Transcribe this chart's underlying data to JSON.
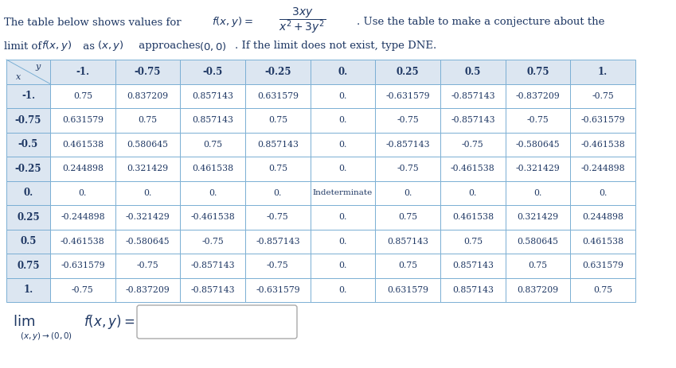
{
  "col_headers": [
    "-1.",
    "-0.75",
    "-0.5",
    "-0.25",
    "0.",
    "0.25",
    "0.5",
    "0.75",
    "1."
  ],
  "row_headers": [
    "-1.",
    "-0.75",
    "-0.5",
    "-0.25",
    "0.",
    "0.25",
    "0.5",
    "0.75",
    "1."
  ],
  "table_data": [
    [
      "0.75",
      "0.837209",
      "0.857143",
      "0.631579",
      "0.",
      "-0.631579",
      "-0.857143",
      "-0.837209",
      "-0.75"
    ],
    [
      "0.631579",
      "0.75",
      "0.857143",
      "0.75",
      "0.",
      "-0.75",
      "-0.857143",
      "-0.75",
      "-0.631579"
    ],
    [
      "0.461538",
      "0.580645",
      "0.75",
      "0.857143",
      "0.",
      "-0.857143",
      "-0.75",
      "-0.580645",
      "-0.461538"
    ],
    [
      "0.244898",
      "0.321429",
      "0.461538",
      "0.75",
      "0.",
      "-0.75",
      "-0.461538",
      "-0.321429",
      "-0.244898"
    ],
    [
      "0.",
      "0.",
      "0.",
      "0.",
      "Indeterminate",
      "0.",
      "0.",
      "0.",
      "0."
    ],
    [
      "-0.244898",
      "-0.321429",
      "-0.461538",
      "-0.75",
      "0.",
      "0.75",
      "0.461538",
      "0.321429",
      "0.244898"
    ],
    [
      "-0.461538",
      "-0.580645",
      "-0.75",
      "-0.857143",
      "0.",
      "0.857143",
      "0.75",
      "0.580645",
      "0.461538"
    ],
    [
      "-0.631579",
      "-0.75",
      "-0.857143",
      "-0.75",
      "0.",
      "0.75",
      "0.857143",
      "0.75",
      "0.631579"
    ],
    [
      "-0.75",
      "-0.837209",
      "-0.857143",
      "-0.631579",
      "0.",
      "0.631579",
      "0.857143",
      "0.837209",
      "0.75"
    ]
  ],
  "header_bg": "#dce6f1",
  "cell_bg": "#ffffff",
  "grid_color": "#7bafd4",
  "text_color": "#1f3864",
  "fig_bg": "#ffffff",
  "title_fontsize": 9.5,
  "cell_fontsize": 7.8,
  "header_fontsize": 8.5
}
